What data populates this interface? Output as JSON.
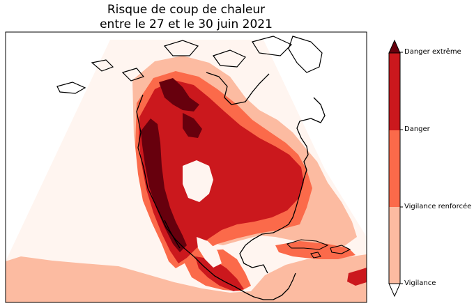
{
  "title": {
    "line1": "Risque de coup de chaleur",
    "line2": "entre le 27 et le 30 juin 2021"
  },
  "colorbar": {
    "levels": [
      {
        "label": "Vigilance",
        "color": "#fcbba1"
      },
      {
        "label": "Vigilance renforcée",
        "color": "#fb6a4a"
      },
      {
        "label": "Danger",
        "color": "#cb181d"
      },
      {
        "label": "Danger extrême",
        "color": "#67000d"
      }
    ],
    "under_color": "#ffffff",
    "over_color": "#67000d"
  },
  "colors": {
    "background": "#fff5f0",
    "vigilance": "#fcbba1",
    "renforcee": "#fb6a4a",
    "danger": "#cb181d",
    "extreme": "#67000d",
    "coastline": "#000000"
  }
}
